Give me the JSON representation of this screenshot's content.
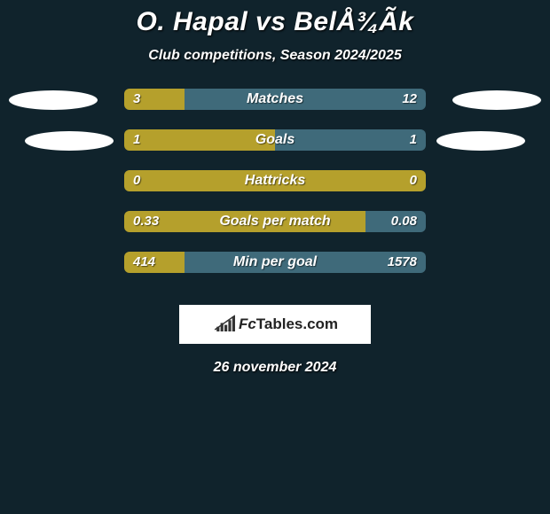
{
  "title": "O. Hapal vs BelÅ¾Ãk",
  "subtitle": "Club competitions, Season 2024/2025",
  "date": "26 november 2024",
  "colors": {
    "left_bar": "#b5a02c",
    "right_bar": "#3f6a7a",
    "background": "#10232c",
    "badge": "#ffffff"
  },
  "logo": {
    "fc": "Fc",
    "tables": "Tables.com",
    "chart_bars": [
      5,
      9,
      7,
      12,
      16
    ],
    "chart_color": "#333333"
  },
  "rows": [
    {
      "label": "Matches",
      "left_val": "3",
      "right_val": "12",
      "left_pct": 20,
      "show_badges": true,
      "badge_left_indent": 0,
      "badge_right_indent": 0
    },
    {
      "label": "Goals",
      "left_val": "1",
      "right_val": "1",
      "left_pct": 50,
      "show_badges": true,
      "badge_left_indent": 18,
      "badge_right_indent": 18
    },
    {
      "label": "Hattricks",
      "left_val": "0",
      "right_val": "0",
      "left_pct": 100,
      "show_badges": false,
      "badge_left_indent": 0,
      "badge_right_indent": 0
    },
    {
      "label": "Goals per match",
      "left_val": "0.33",
      "right_val": "0.08",
      "left_pct": 80,
      "show_badges": false,
      "badge_left_indent": 0,
      "badge_right_indent": 0
    },
    {
      "label": "Min per goal",
      "left_val": "414",
      "right_val": "1578",
      "left_pct": 20,
      "show_badges": false,
      "badge_left_indent": 0,
      "badge_right_indent": 0
    }
  ]
}
